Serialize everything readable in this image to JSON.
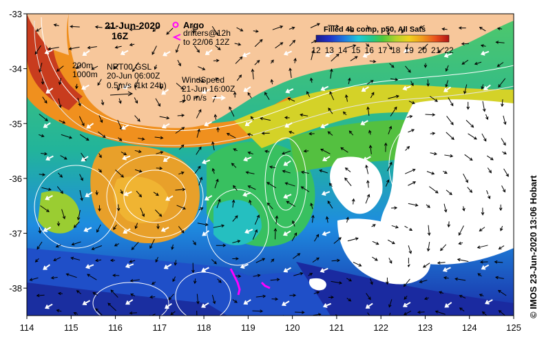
{
  "map": {
    "date": "21-Jun-2020",
    "hour": "16Z",
    "argo_label": "Argo",
    "drifters_line1": "drifters@12h",
    "drifters_line2": "to 22/06 12Z",
    "depth_1": "200m",
    "depth_2": "1000m",
    "current_source": "NRT00 GSL",
    "current_time": "20-Jun 06:00Z",
    "current_scale": "0.5m/s (1kt 24h)",
    "wind_title": "WindSpeed",
    "wind_time": "21-Jun 16:00Z",
    "wind_scale": "10 m/s",
    "colorbar_title": "Filled 4h comp, p50, All Sats",
    "colorbar_ticks": [
      "12",
      "13",
      "14",
      "15",
      "16",
      "17",
      "18",
      "19",
      "20",
      "21",
      "22"
    ],
    "colorbar_range": [
      12,
      22
    ],
    "lon_ticks": [
      "114",
      "115",
      "116",
      "117",
      "118",
      "119",
      "120",
      "121",
      "122",
      "123",
      "124",
      "125"
    ],
    "lat_ticks": [
      "-33",
      "-34",
      "-35",
      "-36",
      "-37",
      "-38"
    ],
    "lon_range": [
      114,
      125
    ],
    "lat_range": [
      -33,
      -38.5
    ],
    "credit": "© IMOS 23-Jun-2020 13:06 Hobart",
    "colors": {
      "land": "#f7c79b",
      "argo": "#ff00ff",
      "drifter": "#ff00ff",
      "cloud": "#ffffff"
    }
  }
}
